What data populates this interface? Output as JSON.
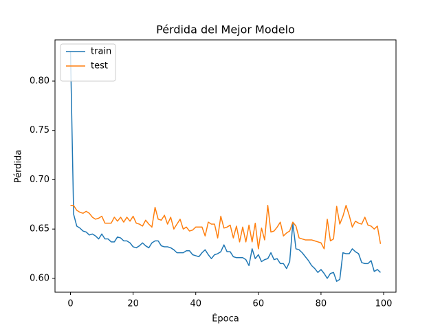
{
  "chart_data": {
    "type": "line",
    "title": "Pérdida del Mejor Modelo",
    "x_label": "Época",
    "y_label": "Pérdida",
    "x": [
      0,
      1,
      2,
      3,
      4,
      5,
      6,
      7,
      8,
      9,
      10,
      11,
      12,
      13,
      14,
      15,
      16,
      17,
      18,
      19,
      20,
      21,
      22,
      23,
      24,
      25,
      26,
      27,
      28,
      29,
      30,
      31,
      32,
      33,
      34,
      35,
      36,
      37,
      38,
      39,
      40,
      41,
      42,
      43,
      44,
      45,
      46,
      47,
      48,
      49,
      50,
      51,
      52,
      53,
      54,
      55,
      56,
      57,
      58,
      59,
      60,
      61,
      62,
      63,
      64,
      65,
      66,
      67,
      68,
      69,
      70,
      71,
      72,
      73,
      74,
      75,
      76,
      77,
      78,
      79,
      80,
      81,
      82,
      83,
      84,
      85,
      86,
      87,
      88,
      89,
      90,
      91,
      92,
      93,
      94,
      95,
      96,
      97,
      98,
      99
    ],
    "series": [
      {
        "name": "train",
        "color": "#1f77b4",
        "values": [
          0.83,
          0.665,
          0.653,
          0.651,
          0.648,
          0.647,
          0.644,
          0.645,
          0.643,
          0.64,
          0.645,
          0.64,
          0.64,
          0.637,
          0.637,
          0.642,
          0.641,
          0.638,
          0.638,
          0.636,
          0.632,
          0.631,
          0.633,
          0.636,
          0.633,
          0.631,
          0.636,
          0.638,
          0.638,
          0.633,
          0.632,
          0.632,
          0.631,
          0.629,
          0.626,
          0.626,
          0.626,
          0.628,
          0.628,
          0.624,
          0.623,
          0.622,
          0.626,
          0.629,
          0.624,
          0.62,
          0.624,
          0.625,
          0.627,
          0.634,
          0.627,
          0.627,
          0.622,
          0.621,
          0.621,
          0.621,
          0.619,
          0.613,
          0.63,
          0.62,
          0.624,
          0.617,
          0.619,
          0.62,
          0.626,
          0.619,
          0.62,
          0.615,
          0.615,
          0.61,
          0.617,
          0.656,
          0.63,
          0.629,
          0.626,
          0.622,
          0.618,
          0.613,
          0.61,
          0.606,
          0.609,
          0.605,
          0.6,
          0.605,
          0.606,
          0.597,
          0.599,
          0.626,
          0.625,
          0.625,
          0.63,
          0.627,
          0.625,
          0.616,
          0.615,
          0.615,
          0.618,
          0.607,
          0.609,
          0.606
        ]
      },
      {
        "name": "test",
        "color": "#ff7f0e",
        "values": [
          0.674,
          0.674,
          0.669,
          0.667,
          0.666,
          0.668,
          0.666,
          0.662,
          0.66,
          0.661,
          0.663,
          0.656,
          0.656,
          0.656,
          0.662,
          0.658,
          0.662,
          0.657,
          0.662,
          0.658,
          0.663,
          0.656,
          0.655,
          0.653,
          0.659,
          0.655,
          0.652,
          0.672,
          0.66,
          0.659,
          0.664,
          0.655,
          0.662,
          0.65,
          0.655,
          0.66,
          0.65,
          0.652,
          0.648,
          0.649,
          0.652,
          0.652,
          0.652,
          0.643,
          0.657,
          0.655,
          0.655,
          0.641,
          0.663,
          0.651,
          0.652,
          0.654,
          0.641,
          0.653,
          0.637,
          0.652,
          0.637,
          0.654,
          0.637,
          0.656,
          0.63,
          0.651,
          0.639,
          0.674,
          0.647,
          0.648,
          0.652,
          0.657,
          0.643,
          0.646,
          0.648,
          0.657,
          0.653,
          0.641,
          0.64,
          0.639,
          0.639,
          0.639,
          0.638,
          0.637,
          0.636,
          0.63,
          0.66,
          0.638,
          0.64,
          0.673,
          0.655,
          0.663,
          0.674,
          0.664,
          0.652,
          0.658,
          0.656,
          0.655,
          0.662,
          0.654,
          0.653,
          0.65,
          0.653,
          0.635
        ]
      }
    ],
    "xlim": [
      -4.95,
      103.95
    ],
    "xticks": [
      0,
      20,
      40,
      60,
      80,
      100
    ],
    "ylim": [
      0.586,
      0.8418
    ],
    "yticks": [
      {
        "value": 0.6,
        "label": "0.60"
      },
      {
        "value": 0.65,
        "label": "0.65"
      },
      {
        "value": 0.7,
        "label": "0.70"
      },
      {
        "value": 0.75,
        "label": "0.75"
      },
      {
        "value": 0.8,
        "label": "0.80"
      }
    ],
    "grid": false,
    "legend": "upper-left"
  }
}
